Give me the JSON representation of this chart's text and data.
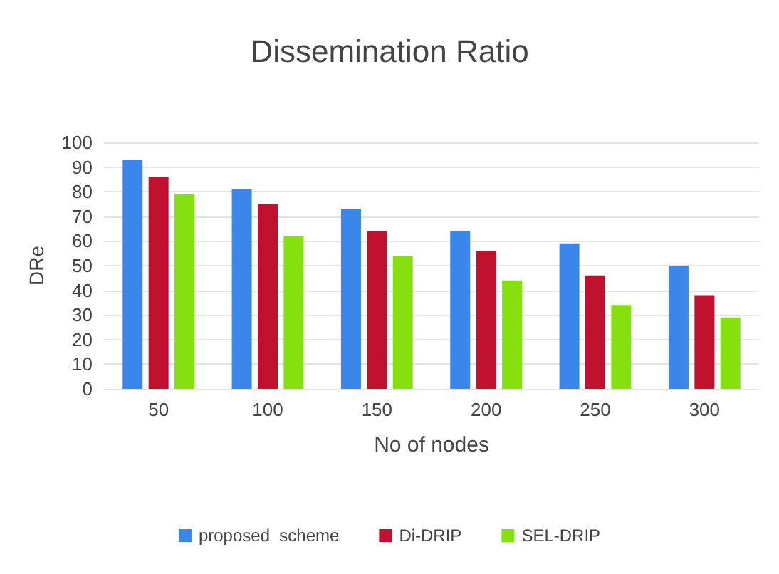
{
  "chart_data": {
    "type": "bar",
    "title": "Dissemination Ratio",
    "xlabel": "No of nodes",
    "ylabel": "DRe",
    "categories": [
      "50",
      "100",
      "150",
      "200",
      "250",
      "300"
    ],
    "series": [
      {
        "name": "proposed  scheme",
        "color": "#3b86ea",
        "values": [
          93,
          81,
          73,
          64,
          59,
          50
        ]
      },
      {
        "name": "Di-DRIP",
        "color": "#c0112e",
        "values": [
          86,
          75,
          64,
          56,
          46,
          38
        ]
      },
      {
        "name": "SEL-DRIP",
        "color": "#86e010",
        "values": [
          79,
          62,
          54,
          44,
          34,
          29
        ]
      }
    ],
    "ylim": [
      0,
      100
    ],
    "yticks": [
      0,
      10,
      20,
      30,
      40,
      50,
      60,
      70,
      80,
      90,
      100
    ],
    "grid": "y",
    "legend": "bottom"
  }
}
